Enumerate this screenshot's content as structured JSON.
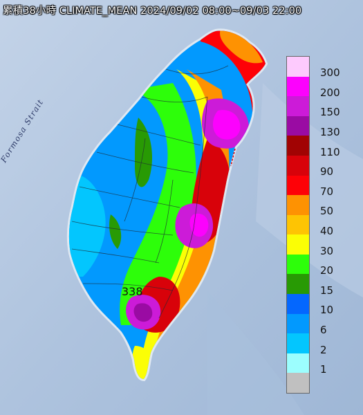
{
  "title": "累積38小時 CLIMATE_MEAN 2024/09/02 08:00~09/03 22:00",
  "strait_label": "Formosa Strait",
  "max_label": "338",
  "legend": [
    {
      "label": "300",
      "color": "#fdcafd"
    },
    {
      "label": "200",
      "color": "#fc02fd"
    },
    {
      "label": "150",
      "color": "#cc1bd8"
    },
    {
      "label": "130",
      "color": "#9a0ba3"
    },
    {
      "label": "110",
      "color": "#a10303"
    },
    {
      "label": "90",
      "color": "#d8020a"
    },
    {
      "label": "70",
      "color": "#fe0107"
    },
    {
      "label": "50",
      "color": "#fe9202"
    },
    {
      "label": "40",
      "color": "#fec403"
    },
    {
      "label": "30",
      "color": "#fbfe05"
    },
    {
      "label": "20",
      "color": "#2dfe0a"
    },
    {
      "label": "15",
      "color": "#289a04"
    },
    {
      "label": "10",
      "color": "#0467fe"
    },
    {
      "label": "6",
      "color": "#0299fe"
    },
    {
      "label": "2",
      "color": "#03c6fe"
    },
    {
      "label": "1",
      "color": "#9cfefe"
    },
    {
      "label": "",
      "color": "#c0c0c0"
    }
  ]
}
